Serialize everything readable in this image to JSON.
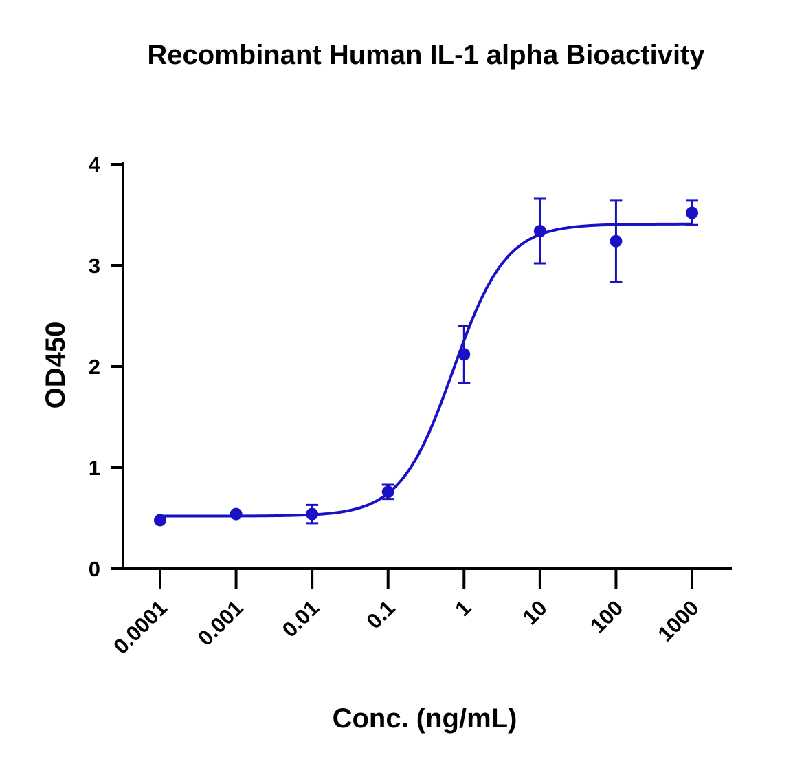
{
  "chart_data": {
    "type": "scatter",
    "title": "Recombinant Human IL-1 alpha Bioactivity",
    "xlabel": "Conc. (ng/mL)",
    "ylabel": "OD450",
    "xscale": "log",
    "xlim": [
      5e-05,
      3000
    ],
    "ylim": [
      0,
      4
    ],
    "x_ticks": [
      0.0001,
      0.001,
      0.01,
      0.1,
      1,
      10,
      100,
      1000
    ],
    "x_tick_labels": [
      "0.0001",
      "0.001",
      "0.01",
      "0.1",
      "1",
      "10",
      "100",
      "1000"
    ],
    "y_ticks": [
      0,
      1,
      2,
      3,
      4
    ],
    "y_tick_labels": [
      "0",
      "1",
      "2",
      "3",
      "4"
    ],
    "grid": false,
    "legend": "none",
    "color": "#1a10c4",
    "series": [
      {
        "x": [
          0.0001,
          0.001,
          0.01,
          0.1,
          1,
          10,
          100,
          1000
        ],
        "y": [
          0.48,
          0.54,
          0.54,
          0.76,
          2.12,
          3.34,
          3.24,
          3.52
        ],
        "error": [
          0,
          0,
          0.09,
          0.07,
          0.28,
          0.32,
          0.4,
          0.12
        ],
        "fit": {
          "model": "4PL",
          "bottom": 0.52,
          "top": 3.41,
          "ec50": 0.72,
          "hill": 1.25
        }
      }
    ]
  }
}
